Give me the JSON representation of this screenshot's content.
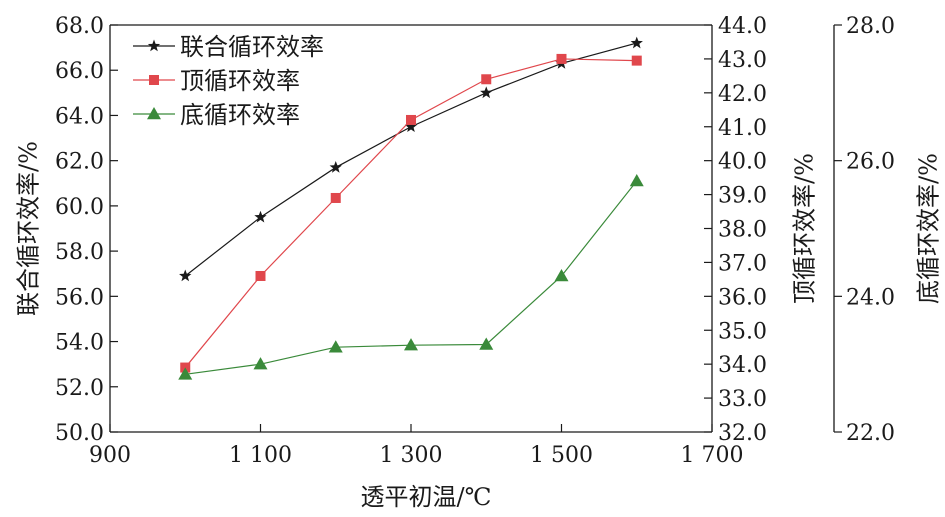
{
  "chart_data": {
    "type": "line",
    "xlabel": "透平初温/℃",
    "x": [
      1000,
      1100,
      1200,
      1300,
      1400,
      1500,
      1600
    ],
    "x_axis": {
      "lim": [
        900,
        1700
      ],
      "ticks": [
        900,
        1100,
        1300,
        1500,
        1700
      ],
      "tick_labels": [
        "900",
        "1 100",
        "1 300",
        "1 500",
        "1 700"
      ]
    },
    "y_axes": [
      {
        "id": "left",
        "label": "联合循环效率/%",
        "lim": [
          50,
          68
        ],
        "ticks": [
          50,
          52,
          54,
          56,
          58,
          60,
          62,
          64,
          66,
          68
        ],
        "tick_labels": [
          "50.0",
          "52.0",
          "54.0",
          "56.0",
          "58.0",
          "60.0",
          "62.0",
          "64.0",
          "66.0",
          "68.0"
        ]
      },
      {
        "id": "right1",
        "label": "顶循环效率/%",
        "lim": [
          32,
          44
        ],
        "ticks": [
          32,
          33,
          34,
          35,
          36,
          37,
          38,
          39,
          40,
          41,
          42,
          43,
          44
        ],
        "tick_labels": [
          "32.0",
          "33.0",
          "34.0",
          "35.0",
          "36.0",
          "37.0",
          "38.0",
          "39.0",
          "40.0",
          "41.0",
          "42.0",
          "43.0",
          "44.0"
        ]
      },
      {
        "id": "right2",
        "label": "底循环效率/%",
        "lim": [
          22,
          28
        ],
        "ticks": [
          22,
          24,
          26,
          28
        ],
        "tick_labels": [
          "22.0",
          "24.0",
          "26.0",
          "28.0"
        ]
      }
    ],
    "series": [
      {
        "name": "联合循环效率",
        "axis": "left",
        "color": "#1a1a1a",
        "marker": "star",
        "values": [
          56.9,
          59.5,
          61.7,
          63.5,
          65.0,
          66.3,
          67.2
        ]
      },
      {
        "name": "顶循环效率",
        "axis": "right1",
        "color": "#e0474c",
        "marker": "square",
        "values": [
          33.9,
          36.6,
          38.9,
          41.2,
          42.4,
          43.0,
          42.95
        ]
      },
      {
        "name": "底循环效率",
        "axis": "right2",
        "color": "#3a8a3a",
        "marker": "triangle",
        "values": [
          22.85,
          23.0,
          23.25,
          23.28,
          23.29,
          24.3,
          25.7
        ]
      }
    ],
    "legend_position": "top-left",
    "grid": false
  }
}
